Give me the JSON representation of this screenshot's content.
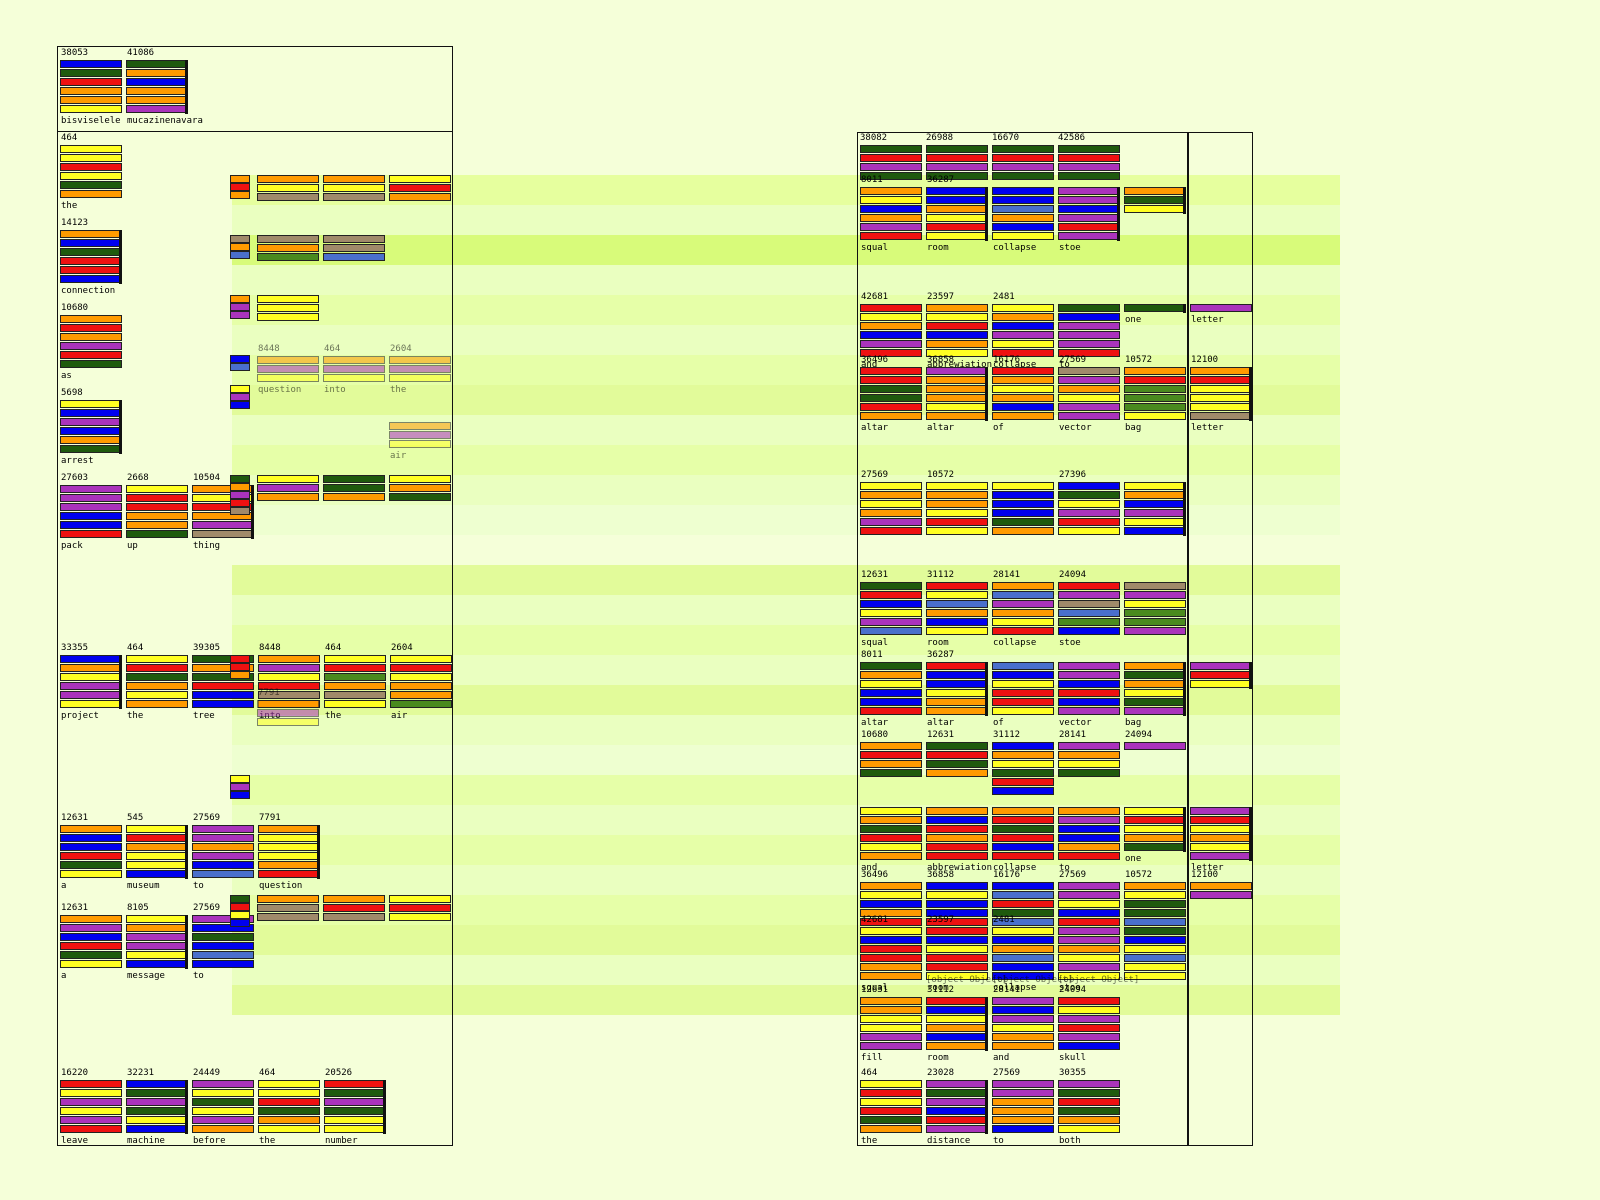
{
  "palette": {
    "R": "#ee1111",
    "O": "#ff9a00",
    "Y": "#ffff22",
    "B": "#0000ee",
    "G": "#1f5a0d",
    "P": "#aa33bb",
    "T": "#a08a6a",
    "L": "#4a6fcc",
    "M": "#4a8a1e"
  },
  "columns": {
    "left": {
      "title_tiles": [
        {
          "num": "38053",
          "word": "bisviselele",
          "bars": "BGROOY"
        },
        {
          "num": "41086",
          "word": "mucazinenavara",
          "bars": "GOBOOP",
          "tick": true
        }
      ],
      "stack_tiles": [
        {
          "num": "464",
          "word": "the",
          "bars": "YYRYGO"
        },
        {
          "num": "14123",
          "word": "connection",
          "bars": "OBGRRB",
          "tick": true
        },
        {
          "num": "10680",
          "word": "as",
          "bars": "OROPRG"
        },
        {
          "num": "5698",
          "word": "arrest",
          "bars": "YBPBOG",
          "tick": true
        }
      ],
      "rows": [
        {
          "items": [
            {
              "num": "27603",
              "word": "pack",
              "bars": "PPPBBR"
            },
            {
              "num": "2668",
              "word": "up",
              "bars": "YRROOG"
            },
            {
              "num": "10504",
              "word": "thing",
              "bars": "OYROPT",
              "tick": true
            }
          ]
        },
        {
          "items": [
            {
              "num": "33355",
              "word": "project",
              "bars": "BOYPPY",
              "tick": true
            },
            {
              "num": "464",
              "word": "the",
              "bars": "YRGOYO"
            },
            {
              "num": "39305",
              "word": "tree",
              "bars": "GOGRBB"
            },
            {
              "num": "8448",
              "word": "into",
              "bars": "OPYRTO"
            },
            {
              "num": "464",
              "word": "the",
              "bars": "YRMOTY"
            },
            {
              "num": "2604",
              "word": "air",
              "bars": "YRYOOM"
            }
          ]
        },
        {
          "items": [
            {
              "num": "12631",
              "word": "a",
              "bars": "OBBRGY"
            },
            {
              "num": "545",
              "word": "museum",
              "bars": "YROYYB",
              "tick": true
            },
            {
              "num": "27569",
              "word": "to",
              "bars": "PPOPBL"
            },
            {
              "num": "7791",
              "word": "question",
              "bars": "OYYYOR",
              "tick": true
            }
          ]
        },
        {
          "items": [
            {
              "num": "12631",
              "word": "a",
              "bars": "OPBRGY"
            },
            {
              "num": "8105",
              "word": "message",
              "bars": "YOPPYB",
              "tick": true
            },
            {
              "num": "27569",
              "word": "to",
              "bars": "PBGBLB"
            }
          ]
        },
        {
          "items": [
            {
              "num": "16220",
              "word": "leave",
              "bars": "RYPYPR"
            },
            {
              "num": "32231",
              "word": "machine",
              "bars": "BGPGYB",
              "tick": true
            },
            {
              "num": "24449",
              "word": "before",
              "bars": "PYGYPO"
            },
            {
              "num": "464",
              "word": "the",
              "bars": "YYRGOY"
            },
            {
              "num": "20526",
              "word": "number",
              "bars": "RGPGYY",
              "tick": true
            }
          ]
        }
      ],
      "ghost_labels": [
        {
          "num": "8448",
          "word": "question"
        },
        {
          "num": "464",
          "word": "into"
        },
        {
          "num": "2604",
          "word": "the"
        },
        {
          "num": "",
          "word": "air"
        },
        {
          "num": "7791",
          "word": ""
        }
      ]
    },
    "right": {
      "header_nums": [
        "38082",
        "26988",
        "16670",
        "42586"
      ],
      "rows": [
        {
          "items": [
            {
              "num": "8011",
              "word": "squal",
              "bars": "OYBOPR"
            },
            {
              "num": "36287",
              "word": "room",
              "bars": "BBOYRY",
              "tick": true
            },
            {
              "num": "",
              "word": "collapse",
              "bars": "BBLOBY"
            },
            {
              "num": "",
              "word": "stoe",
              "bars": "PPBPRP",
              "tick": true
            },
            {
              "num": "",
              "word": "",
              "bars": "OGY",
              "tick": true
            }
          ]
        },
        {
          "items": [
            {
              "num": "42681",
              "word": "and",
              "bars": "RYOBPR"
            },
            {
              "num": "23597",
              "word": "abbrewiation",
              "bars": "OYRBOY"
            },
            {
              "num": "2481",
              "word": "collapse",
              "bars": "YOBPYR"
            },
            {
              "num": "",
              "word": "to",
              "bars": "GBPPPR"
            },
            {
              "num": "",
              "word": "one",
              "bars": "G",
              "tick": true
            },
            {
              "num": "",
              "word": "letter",
              "bars": "P"
            }
          ]
        },
        {
          "items": [
            {
              "num": "36496",
              "word": "altar",
              "bars": "RRGGRO"
            },
            {
              "num": "36858",
              "word": "altar",
              "bars": "POOOYO",
              "tick": true
            },
            {
              "num": "16176",
              "word": "of",
              "bars": "ROYOBO"
            },
            {
              "num": "27569",
              "word": "vector",
              "bars": "TPOYPP"
            },
            {
              "num": "10572",
              "word": "bag",
              "bars": "ORMMMY"
            },
            {
              "num": "12100",
              "word": "letter",
              "bars": "ORYYYT",
              "tick": true
            }
          ]
        },
        {
          "items": [
            {
              "num": "27569",
              "word": "",
              "bars": "YOYOPR"
            },
            {
              "num": "10572",
              "word": "",
              "bars": "YOOYRY"
            },
            {
              "num": "",
              "word": "",
              "bars": "YBBBGO"
            },
            {
              "num": "27396",
              "word": "",
              "bars": "BGYPRY"
            },
            {
              "num": "",
              "word": "",
              "bars": "YOBPYB",
              "tick": true
            }
          ]
        },
        {
          "items": [
            {
              "num": "12631",
              "word": "squal",
              "bars": "GRBYPL"
            },
            {
              "num": "31112",
              "word": "room",
              "bars": "RYLOBY"
            },
            {
              "num": "28141",
              "word": "collapse",
              "bars": "OLPOYR"
            },
            {
              "num": "24094",
              "word": "stoe",
              "bars": "RPTLMB"
            },
            {
              "num": "",
              "word": "",
              "bars": "TPYMMP"
            }
          ]
        },
        {
          "items": [
            {
              "num": "8011",
              "word": "altar",
              "bars": "GOYBBR"
            },
            {
              "num": "36287",
              "word": "altar",
              "bars": "RBBYOO",
              "tick": true
            },
            {
              "num": "",
              "word": "of",
              "bars": "LBYRRY"
            },
            {
              "num": "",
              "word": "vector",
              "bars": "PPBRBP"
            },
            {
              "num": "",
              "word": "bag",
              "bars": "OGOYGP",
              "tick": true
            },
            {
              "num": "",
              "word": "",
              "bars": "PRY",
              "tick": true
            }
          ]
        },
        {
          "items": [
            {
              "num": "10680",
              "word": "",
              "bars": "OROG"
            },
            {
              "num": "12631",
              "word": "",
              "bars": "GRGO"
            },
            {
              "num": "31112",
              "word": "",
              "bars": "BOYGRB"
            },
            {
              "num": "28141",
              "word": "",
              "bars": "POYG"
            },
            {
              "num": "24094",
              "word": "",
              "bars": "P"
            }
          ]
        },
        {
          "items": [
            {
              "num": "",
              "word": "and",
              "bars": "YOGRYO"
            },
            {
              "num": "",
              "word": "abbrewiation",
              "bars": "OBRORR"
            },
            {
              "num": "",
              "word": "collapse",
              "bars": "ORGRBR"
            },
            {
              "num": "",
              "word": "to",
              "bars": "OPBBOR"
            },
            {
              "num": "",
              "word": "one",
              "bars": "YRYOG",
              "tick": true
            },
            {
              "num": "",
              "word": "letter",
              "bars": "PRYOYP",
              "tick": true
            }
          ]
        },
        {
          "items": [
            {
              "num": "36496",
              "word": "",
              "bars": "OYBORY"
            },
            {
              "num": "36858",
              "word": "",
              "bars": "BYBBRY"
            },
            {
              "num": "16176",
              "word": "",
              "bars": "BLRGLY"
            },
            {
              "num": "27569",
              "word": "",
              "bars": "PPYBRG"
            },
            {
              "num": "10572",
              "word": "",
              "bars": "OYGGLB"
            },
            {
              "num": "12100",
              "word": "",
              "bars": "OP"
            }
          ]
        },
        {
          "items": [
            {
              "num": "42681",
              "word": "squal",
              "bars": "YBRROO"
            },
            {
              "num": "23597",
              "word": "room",
              "bars": "RBYRRY"
            },
            {
              "num": "2481",
              "word": "collapse",
              "bars": "YBOLBB"
            },
            {
              "num": "",
              "word": "stoe",
              "bars": "PPOYPY"
            },
            {
              "num": "",
              "word": "",
              "bars": "GBYLYY"
            }
          ]
        },
        {
          "items": [
            {
              "num": "12631",
              "word": "fill",
              "bars": "OOYYPP"
            },
            {
              "num": "31112",
              "word": "room",
              "bars": "RBYOBO",
              "tick": true
            },
            {
              "num": "28141",
              "word": "and",
              "bars": "PBPYOO"
            },
            {
              "num": "24094",
              "word": "skull",
              "bars": "RYPRPB"
            }
          ]
        },
        {
          "items": [
            {
              "num": "464",
              "word": "the",
              "bars": "YRYRGO"
            },
            {
              "num": "23028",
              "word": "distance",
              "bars": "PGPBRP",
              "tick": true
            },
            {
              "num": "27569",
              "word": "to",
              "bars": "PPOOOB"
            },
            {
              "num": "30355",
              "word": "both",
              "bars": "PGRGOY"
            }
          ]
        }
      ],
      "ghost_labels": [
        {
          "num": "25086",
          "word": ""
        },
        {
          "num": "16496",
          "word": ""
        },
        {
          "num": "28021",
          "word": ""
        }
      ]
    }
  }
}
